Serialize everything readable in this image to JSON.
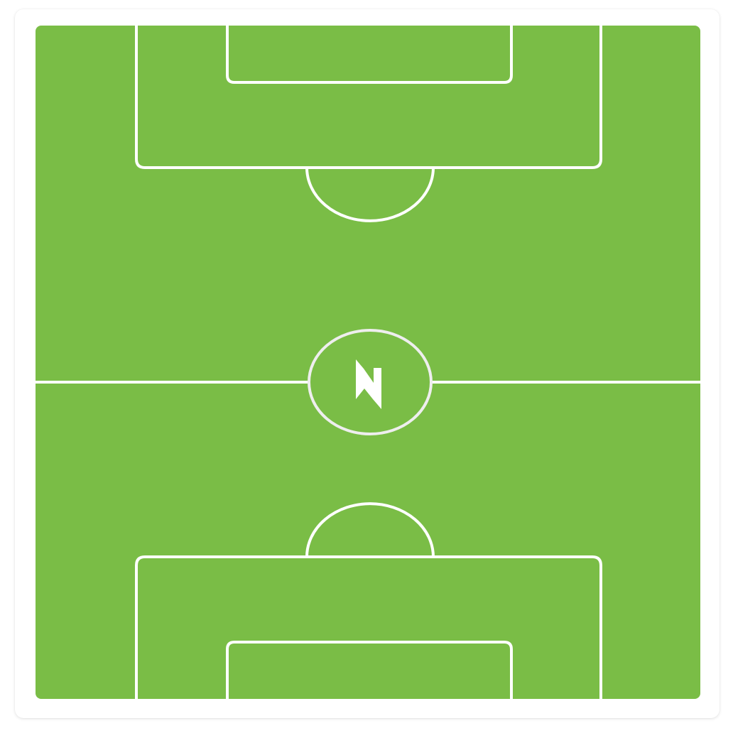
{
  "pitch": {
    "grass_color": "#7abd46",
    "line_color": "#ffffff",
    "center_circle_color": "#eeeeee",
    "center_icon": "lightning-logo-icon"
  }
}
